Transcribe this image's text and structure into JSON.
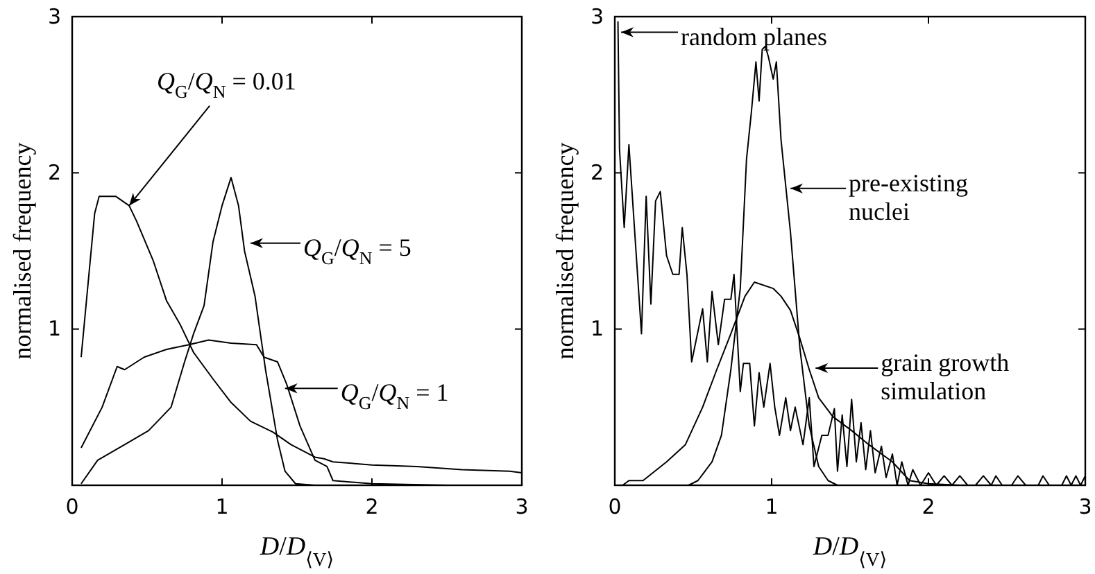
{
  "chart_data": [
    {
      "type": "line",
      "xlabel": "D/D$_{⟨V⟩}$",
      "ylabel": "normalised frequency",
      "xlim": [
        0,
        3
      ],
      "ylim": [
        0,
        3
      ],
      "xticks": [
        0,
        1,
        2,
        3
      ],
      "yticks": [
        1,
        2,
        3
      ],
      "grid": false,
      "marker": "none",
      "line_style": "solid",
      "series": [
        {
          "color": "#000000",
          "x": [
            0.06,
            0.15,
            0.18,
            0.29,
            0.38,
            0.43,
            0.54,
            0.63,
            0.72,
            0.81,
            0.94,
            1.06,
            1.19,
            1.34,
            1.46,
            1.62,
            1.68,
            1.74,
            2.0,
            2.3,
            2.6,
            2.92,
            3.0
          ],
          "values": [
            0.82,
            1.74,
            1.85,
            1.85,
            1.79,
            1.69,
            1.44,
            1.18,
            1.03,
            0.85,
            0.68,
            0.53,
            0.41,
            0.34,
            0.26,
            0.18,
            0.17,
            0.15,
            0.13,
            0.12,
            0.1,
            0.09,
            0.08
          ]
        },
        {
          "color": "#000000",
          "x": [
            0.06,
            0.17,
            0.35,
            0.51,
            0.66,
            0.75,
            0.81,
            0.88,
            0.94,
            1.0,
            1.06,
            1.11,
            1.15,
            1.22,
            1.29,
            1.37,
            1.42,
            1.49,
            1.62
          ],
          "values": [
            0.01,
            0.16,
            0.26,
            0.35,
            0.5,
            0.79,
            0.97,
            1.15,
            1.56,
            1.79,
            1.97,
            1.79,
            1.5,
            1.21,
            0.74,
            0.29,
            0.09,
            0.01,
            0
          ]
        },
        {
          "color": "#000000",
          "x": [
            0.06,
            0.2,
            0.3,
            0.35,
            0.48,
            0.63,
            0.78,
            0.91,
            1.06,
            1.23,
            1.28,
            1.37,
            1.43,
            1.52,
            1.62,
            1.7,
            1.74,
            2.0,
            2.5,
            3.0
          ],
          "values": [
            0.24,
            0.5,
            0.76,
            0.74,
            0.82,
            0.87,
            0.9,
            0.93,
            0.91,
            0.9,
            0.82,
            0.79,
            0.65,
            0.38,
            0.16,
            0.12,
            0.03,
            0.01,
            0,
            0
          ]
        }
      ],
      "annotations": [
        {
          "text": "Q$_{G}$/Q$_{N}$ = 0.01",
          "x": 0.38,
          "y": 1.79
        },
        {
          "text": "Q$_{G}$/Q$_{N}$ = 5",
          "x": 1.19,
          "y": 1.55
        },
        {
          "text": "Q$_{G}$/Q$_{N}$ = 1",
          "x": 1.42,
          "y": 0.62
        }
      ]
    },
    {
      "type": "line",
      "xlabel": "D/D$_{⟨V⟩}$",
      "ylabel": "normalised frequency",
      "xlim": [
        0,
        3
      ],
      "ylim": [
        0,
        3
      ],
      "xticks": [
        0,
        1,
        2,
        3
      ],
      "yticks": [
        1,
        2,
        3
      ],
      "grid": false,
      "marker": "none",
      "line_style": "solid",
      "series": [
        {
          "color": "#000000",
          "x": [
            0.02,
            0.03,
            0.06,
            0.09,
            0.17,
            0.2,
            0.23,
            0.26,
            0.29,
            0.33,
            0.37,
            0.41,
            0.43,
            0.46,
            0.49,
            0.56,
            0.59,
            0.62,
            0.66,
            0.7,
            0.74,
            0.76,
            0.8,
            0.82,
            0.86,
            0.89,
            0.92,
            0.95,
            0.99,
            1.02,
            1.05,
            1.09,
            1.12,
            1.15,
            1.2,
            1.24,
            1.27,
            1.32,
            1.36,
            1.4,
            1.42,
            1.45,
            1.48,
            1.51,
            1.54,
            1.57,
            1.6,
            1.63,
            1.66,
            1.7,
            1.73,
            1.77,
            1.8,
            1.83,
            1.87,
            1.9,
            1.95,
            2.0,
            2.05,
            2.1,
            2.15,
            2.2,
            2.25,
            2.3,
            2.35,
            2.4,
            2.43,
            2.47,
            2.53,
            2.57,
            2.62,
            2.7,
            2.73,
            2.77,
            2.85,
            2.88,
            2.91,
            2.94,
            2.97,
            3.0
          ],
          "values": [
            2.97,
            2.15,
            1.65,
            2.18,
            0.97,
            1.85,
            1.16,
            1.82,
            1.88,
            1.47,
            1.35,
            1.35,
            1.65,
            1.35,
            0.79,
            1.13,
            0.79,
            1.24,
            0.9,
            1.19,
            1.19,
            1.35,
            0.6,
            0.78,
            0.78,
            0.38,
            0.72,
            0.5,
            0.78,
            0.5,
            0.32,
            0.56,
            0.35,
            0.5,
            0.26,
            0.56,
            0.12,
            0.32,
            0.32,
            0.49,
            0.09,
            0.45,
            0.12,
            0.55,
            0.15,
            0.4,
            0.1,
            0.35,
            0.08,
            0.25,
            0.05,
            0.2,
            0,
            0.15,
            0,
            0.1,
            0,
            0.08,
            0,
            0.06,
            0,
            0.06,
            0,
            0,
            0.06,
            0,
            0.06,
            0,
            0,
            0.06,
            0,
            0,
            0.06,
            0,
            0,
            0.06,
            0,
            0.06,
            0,
            0.06
          ]
        },
        {
          "color": "#000000",
          "x": [
            0.47,
            0.53,
            0.62,
            0.68,
            0.74,
            0.8,
            0.84,
            0.87,
            0.9,
            0.92,
            0.94,
            0.96,
            0.98,
            1.01,
            1.03,
            1.06,
            1.12,
            1.18,
            1.24,
            1.3,
            1.36,
            1.42
          ],
          "values": [
            0,
            0.03,
            0.15,
            0.32,
            0.74,
            1.26,
            2.09,
            2.38,
            2.71,
            2.46,
            2.79,
            2.81,
            2.74,
            2.6,
            2.71,
            2.21,
            1.62,
            0.88,
            0.38,
            0.12,
            0.03,
            0
          ]
        },
        {
          "color": "#000000",
          "x": [
            0.05,
            0.09,
            0.18,
            0.33,
            0.45,
            0.56,
            0.65,
            0.74,
            0.83,
            0.89,
            1.01,
            1.06,
            1.12,
            1.18,
            1.24,
            1.3,
            1.39,
            1.51,
            1.62,
            1.77,
            1.88,
            2.0,
            2.2
          ],
          "values": [
            0,
            0.03,
            0.03,
            0.15,
            0.26,
            0.5,
            0.74,
            0.97,
            1.21,
            1.3,
            1.26,
            1.21,
            1.12,
            0.94,
            0.74,
            0.56,
            0.44,
            0.35,
            0.26,
            0.15,
            0.03,
            0.01,
            0
          ]
        }
      ],
      "annotations": [
        {
          "text": "random planes",
          "x": 0.04,
          "y": 2.9
        },
        {
          "text": "pre-existing nuclei",
          "x": 1.12,
          "y": 1.9
        },
        {
          "text": "grain growth simulation",
          "x": 1.28,
          "y": 0.75
        }
      ]
    }
  ]
}
